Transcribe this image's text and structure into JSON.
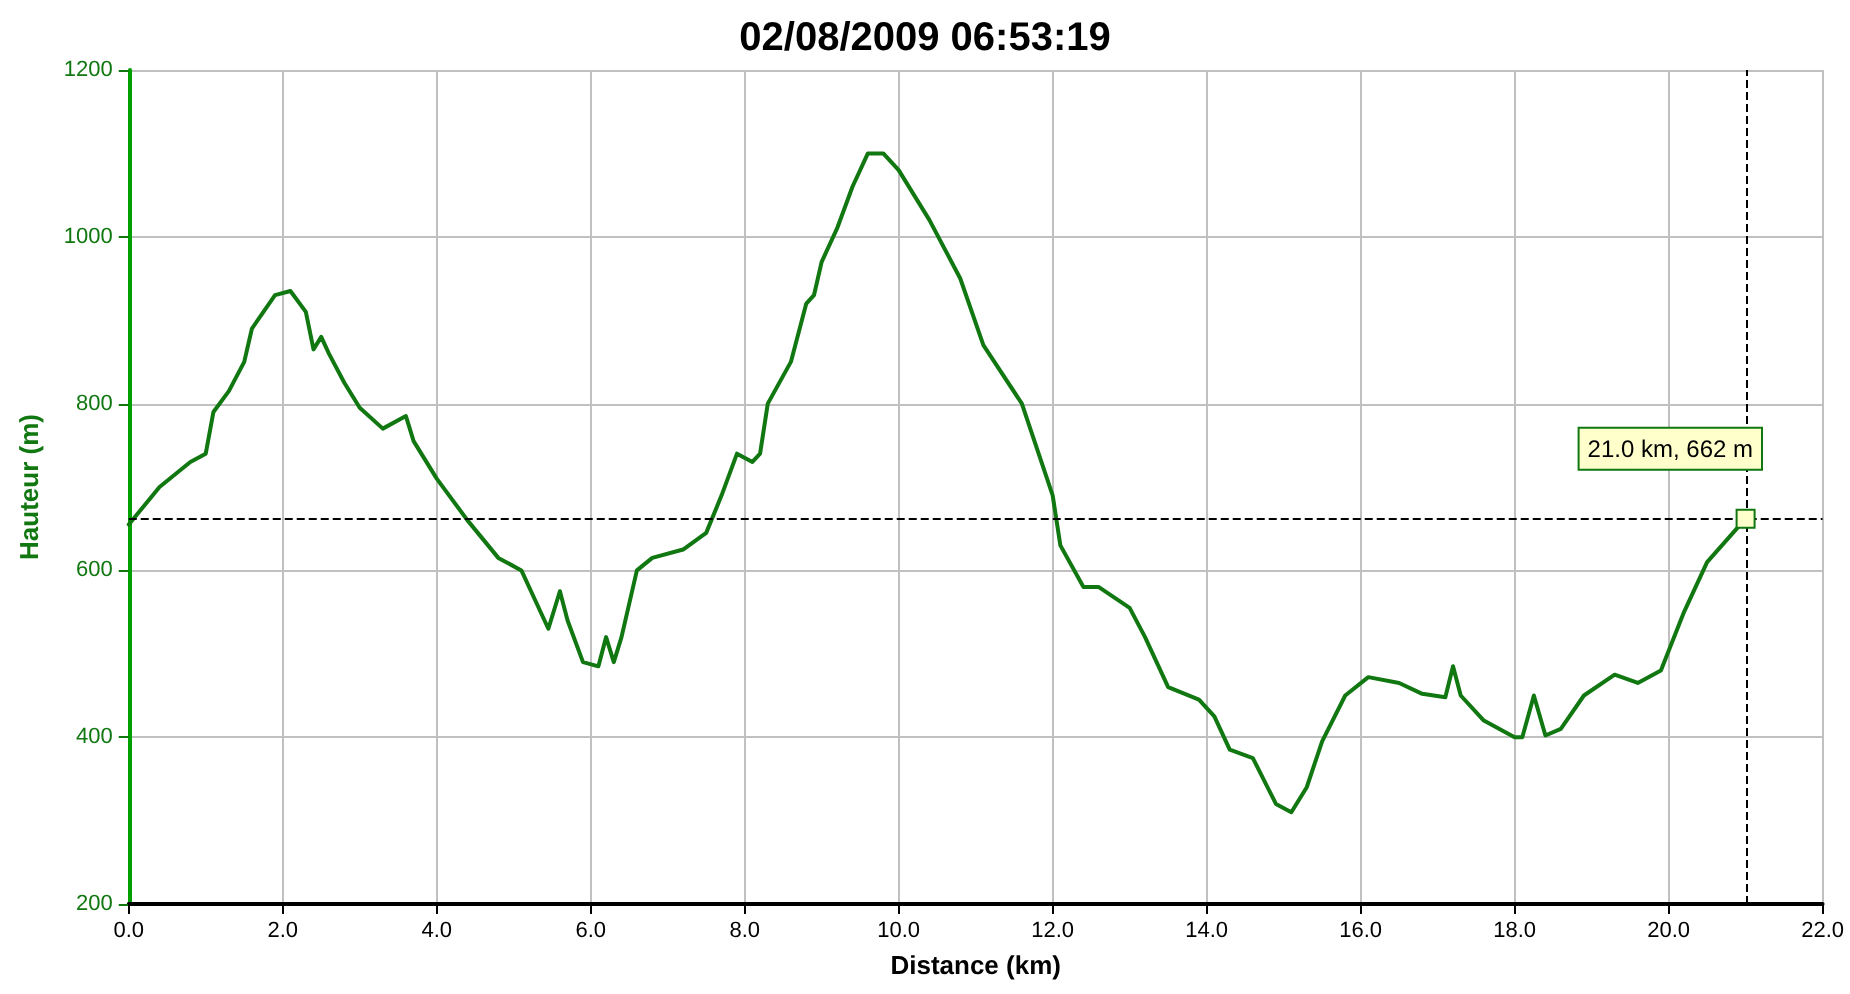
{
  "chart_data": {
    "type": "line",
    "title": "02/08/2009 06:53:19",
    "xlabel": "Distance (km)",
    "ylabel": "Hauteur (m)",
    "xlim": [
      0,
      22
    ],
    "xticks": [
      {
        "value": 0,
        "label": "0.0"
      },
      {
        "value": 2,
        "label": "2.0"
      },
      {
        "value": 4,
        "label": "4.0"
      },
      {
        "value": 6,
        "label": "6.0"
      },
      {
        "value": 8,
        "label": "8.0"
      },
      {
        "value": 10,
        "label": "10.0"
      },
      {
        "value": 12,
        "label": "12.0"
      },
      {
        "value": 14,
        "label": "14.0"
      },
      {
        "value": 16,
        "label": "16.0"
      },
      {
        "value": 18,
        "label": "18.0"
      },
      {
        "value": 20,
        "label": "20.0"
      },
      {
        "value": 22,
        "label": "22.0"
      }
    ],
    "ylim": [
      200,
      1200
    ],
    "yticks": [
      200,
      400,
      600,
      800,
      1000,
      1200
    ],
    "grid": true,
    "marker": "none",
    "line_style": "solid",
    "x": [
      0,
      0.4,
      0.8,
      1.0,
      1.1,
      1.3,
      1.5,
      1.6,
      1.9,
      2.1,
      2.3,
      2.4,
      2.5,
      2.6,
      2.8,
      3.0,
      3.3,
      3.6,
      3.7,
      4.0,
      4.4,
      4.8,
      5.1,
      5.3,
      5.45,
      5.6,
      5.7,
      5.9,
      6.1,
      6.2,
      6.3,
      6.4,
      6.6,
      6.8,
      7.2,
      7.5,
      7.7,
      7.9,
      8.1,
      8.2,
      8.3,
      8.6,
      8.8,
      8.9,
      9.0,
      9.2,
      9.4,
      9.6,
      9.8,
      10.0,
      10.4,
      10.8,
      11.1,
      11.6,
      12.0,
      12.1,
      12.4,
      12.6,
      13.0,
      13.2,
      13.5,
      13.9,
      14.1,
      14.3,
      14.6,
      14.9,
      15.1,
      15.3,
      15.5,
      15.8,
      16.1,
      16.5,
      16.8,
      17.1,
      17.2,
      17.3,
      17.6,
      18.0,
      18.1,
      18.25,
      18.4,
      18.6,
      18.9,
      19.3,
      19.6,
      19.9,
      20.2,
      20.5,
      21.0
    ],
    "series": [
      {
        "color": "#117711",
        "values": [
          655,
          700,
          730,
          740,
          790,
          815,
          850,
          890,
          930,
          935,
          910,
          865,
          880,
          860,
          825,
          795,
          770,
          785,
          755,
          710,
          660,
          615,
          600,
          560,
          530,
          575,
          540,
          490,
          485,
          520,
          490,
          520,
          600,
          615,
          625,
          645,
          690,
          740,
          730,
          740,
          800,
          850,
          920,
          930,
          970,
          1010,
          1060,
          1100,
          1100,
          1080,
          1020,
          950,
          870,
          800,
          690,
          630,
          580,
          580,
          555,
          520,
          460,
          445,
          425,
          385,
          375,
          320,
          310,
          340,
          395,
          450,
          472,
          465,
          452,
          448,
          485,
          450,
          420,
          400,
          400,
          450,
          402,
          410,
          450,
          475,
          465,
          480,
          550,
          610,
          662
        ]
      }
    ],
    "ref_lines": [
      {
        "axis": "x",
        "value": 21,
        "line_style": "dashed",
        "color": "#000000"
      },
      {
        "axis": "y",
        "value": 662,
        "line_style": "dashed",
        "color": "#000000"
      }
    ],
    "annotations": [
      {
        "text": "21.0 km, 662 m",
        "x": 21,
        "y": 662
      }
    ]
  }
}
